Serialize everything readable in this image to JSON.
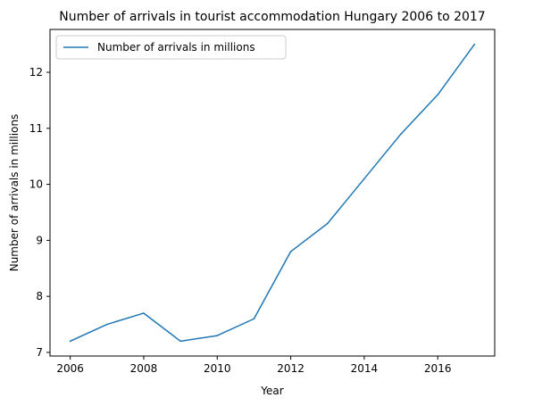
{
  "chart_data": {
    "type": "line",
    "title": "Number of arrivals in tourist accommodation Hungary 2006 to 2017",
    "xlabel": "Year",
    "ylabel": "Number of arrivals in millions",
    "x": [
      2006,
      2007,
      2008,
      2009,
      2010,
      2011,
      2012,
      2013,
      2014,
      2015,
      2016,
      2017
    ],
    "series": [
      {
        "name": "Number of arrivals in millions",
        "values": [
          7.2,
          7.5,
          7.7,
          7.2,
          7.3,
          7.6,
          8.8,
          9.3,
          10.1,
          10.9,
          11.6,
          12.5
        ],
        "color": "#1f77b4"
      }
    ],
    "xlim": [
      2005.45,
      2017.55
    ],
    "ylim": [
      6.935,
      12.765
    ],
    "xticks": [
      2006,
      2008,
      2010,
      2012,
      2014,
      2016
    ],
    "yticks": [
      7,
      8,
      9,
      10,
      11,
      12
    ],
    "grid": false,
    "legend_position": "top-left"
  }
}
